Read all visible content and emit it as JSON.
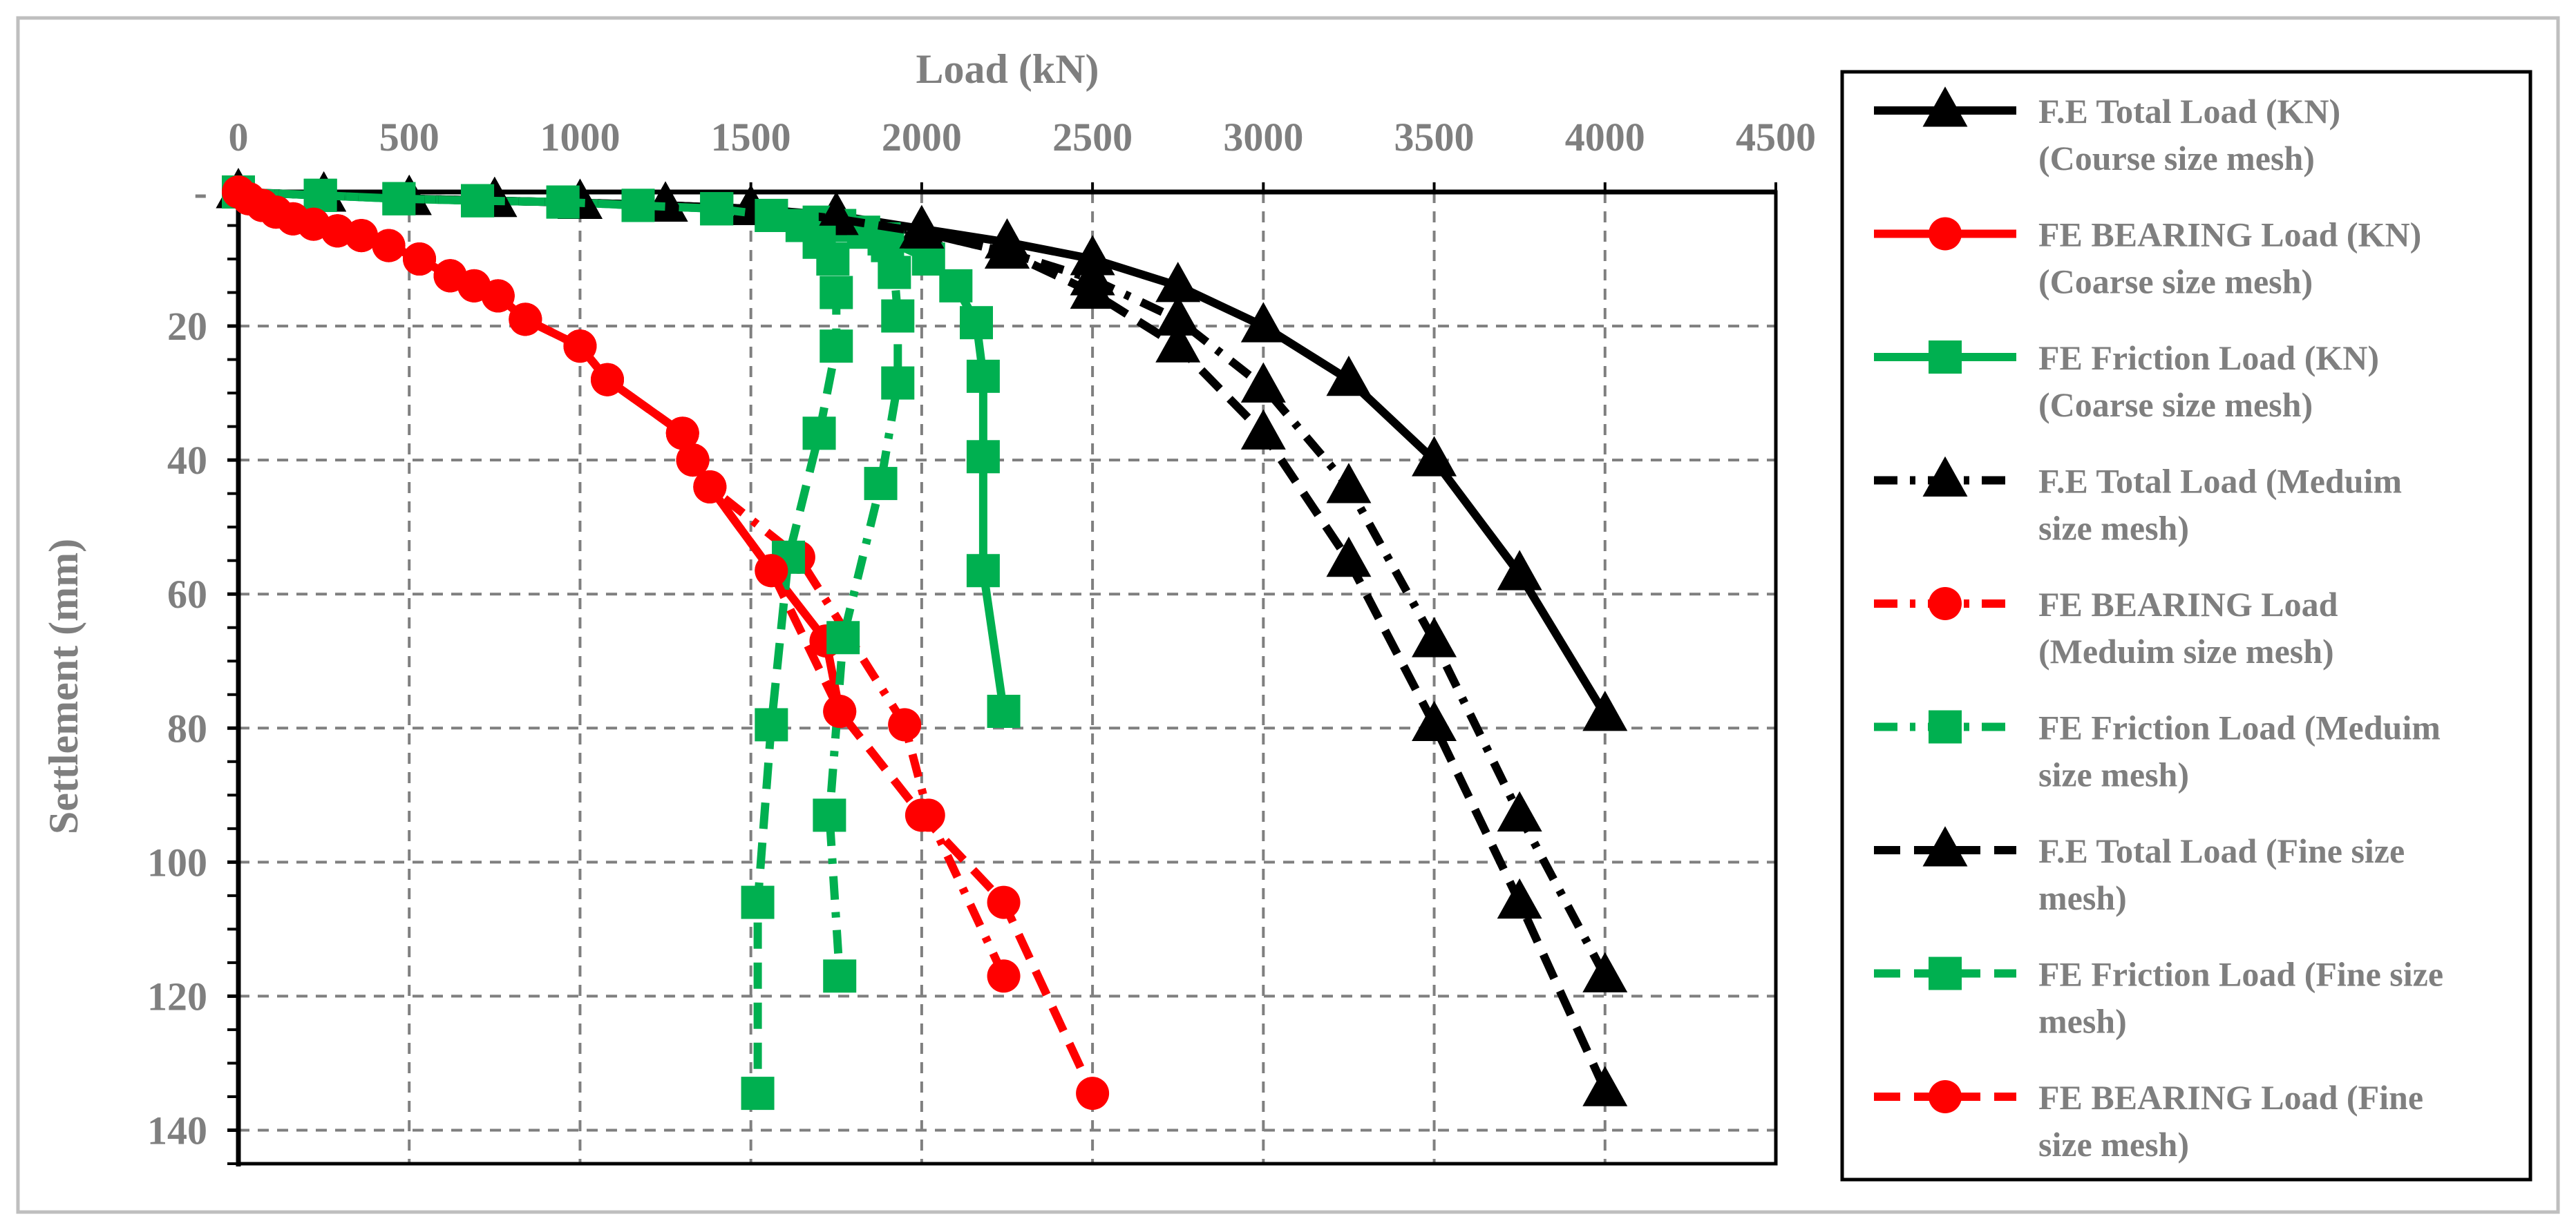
{
  "chart_data": {
    "type": "line",
    "xlabel": "Load (kN)",
    "ylabel": "Settlement (mm)",
    "x_axis_position": "top",
    "y_axis_inverted": true,
    "xlim": [
      0,
      4500
    ],
    "ylim": [
      0,
      145
    ],
    "xticks": [
      0,
      500,
      1000,
      1500,
      2000,
      2500,
      3000,
      3500,
      4000,
      4500
    ],
    "xtick_labels": [
      "0",
      "500",
      "1000",
      "1500",
      "2000",
      "2500",
      "3000",
      "3500",
      "4000",
      "4500"
    ],
    "yticks": [
      0,
      20,
      40,
      60,
      80,
      100,
      120,
      140
    ],
    "ytick_labels": [
      "-",
      "20",
      "40",
      "60",
      "80",
      "100",
      "120",
      "140"
    ],
    "grid": true,
    "legend_position": "right",
    "series": [
      {
        "name_lines": [
          "F.E Total Load (KN)",
          "(Course size mesh)"
        ],
        "color": "#000000",
        "dash": "solid",
        "marker": "triangle",
        "points": [
          [
            0,
            0
          ],
          [
            250,
            0.5
          ],
          [
            500,
            1
          ],
          [
            750,
            1.3
          ],
          [
            1000,
            1.6
          ],
          [
            1250,
            2
          ],
          [
            1500,
            2.5
          ],
          [
            1750,
            3.5
          ],
          [
            2000,
            5.5
          ],
          [
            2250,
            7.5
          ],
          [
            2500,
            10
          ],
          [
            2750,
            14
          ],
          [
            3000,
            20
          ],
          [
            3250,
            28
          ],
          [
            3500,
            40
          ],
          [
            3750,
            57
          ],
          [
            4000,
            78
          ]
        ]
      },
      {
        "name_lines": [
          "FE BEARING Load (KN)",
          "(Coarse  size mesh)"
        ],
        "color": "#ff0000",
        "dash": "solid",
        "marker": "circle",
        "points": [
          [
            0,
            0
          ],
          [
            30,
            1
          ],
          [
            70,
            2
          ],
          [
            110,
            3
          ],
          [
            160,
            4
          ],
          [
            220,
            4.8
          ],
          [
            290,
            5.8
          ],
          [
            360,
            6.5
          ],
          [
            440,
            8
          ],
          [
            530,
            10
          ],
          [
            620,
            12.5
          ],
          [
            690,
            14
          ],
          [
            760,
            15.5
          ],
          [
            840,
            19
          ],
          [
            1000,
            23
          ],
          [
            1080,
            28
          ],
          [
            1300,
            36
          ],
          [
            1330,
            40
          ],
          [
            1380,
            44
          ],
          [
            1560,
            56.5
          ],
          [
            1720,
            67
          ],
          [
            1760,
            77.5
          ]
        ]
      },
      {
        "name_lines": [
          "FE Friction Load (KN)",
          "(Coarse  size mesh)"
        ],
        "color": "#00b050",
        "dash": "solid",
        "marker": "square",
        "points": [
          [
            0,
            0
          ],
          [
            240,
            0.5
          ],
          [
            470,
            1
          ],
          [
            700,
            1.3
          ],
          [
            950,
            1.5
          ],
          [
            1170,
            2
          ],
          [
            1400,
            2.5
          ],
          [
            1560,
            3.5
          ],
          [
            1760,
            5
          ],
          [
            1890,
            7
          ],
          [
            2020,
            10
          ],
          [
            2100,
            14
          ],
          [
            2160,
            19.5
          ],
          [
            2180,
            27.5
          ],
          [
            2180,
            39.5
          ],
          [
            2180,
            56.5
          ],
          [
            2240,
            77.5
          ]
        ]
      },
      {
        "name_lines": [
          "F.E Total Load (Meduim",
          "size mesh)"
        ],
        "color": "#000000",
        "dash": "dashdot",
        "marker": "triangle",
        "points": [
          [
            0,
            0
          ],
          [
            250,
            0.5
          ],
          [
            500,
            1
          ],
          [
            750,
            1.3
          ],
          [
            1000,
            1.6
          ],
          [
            1250,
            2
          ],
          [
            1500,
            2.5
          ],
          [
            1750,
            4
          ],
          [
            2000,
            6
          ],
          [
            2250,
            9
          ],
          [
            2500,
            13
          ],
          [
            2750,
            19
          ],
          [
            3000,
            29
          ],
          [
            3250,
            44
          ],
          [
            3500,
            67
          ],
          [
            3750,
            93
          ],
          [
            4000,
            117
          ]
        ]
      },
      {
        "name_lines": [
          "FE BEARING Load",
          "(Meduim size mesh)"
        ],
        "color": "#ff0000",
        "dash": "dashdot",
        "marker": "circle",
        "points": [
          [
            0,
            0
          ],
          [
            30,
            1
          ],
          [
            70,
            2
          ],
          [
            110,
            3
          ],
          [
            160,
            4
          ],
          [
            220,
            4.8
          ],
          [
            290,
            5.8
          ],
          [
            360,
            6.5
          ],
          [
            440,
            8
          ],
          [
            530,
            10
          ],
          [
            620,
            12.5
          ],
          [
            690,
            14
          ],
          [
            760,
            15.5
          ],
          [
            840,
            19
          ],
          [
            1000,
            23
          ],
          [
            1080,
            28
          ],
          [
            1300,
            36
          ],
          [
            1330,
            40
          ],
          [
            1380,
            44
          ],
          [
            1640,
            54.5
          ],
          [
            1950,
            79.5
          ],
          [
            2020,
            93
          ],
          [
            2240,
            117
          ]
        ]
      },
      {
        "name_lines": [
          "FE Friction Load (Meduim",
          "size mesh)"
        ],
        "color": "#00b050",
        "dash": "dashdot",
        "marker": "square",
        "points": [
          [
            0,
            0
          ],
          [
            240,
            0.5
          ],
          [
            470,
            1
          ],
          [
            700,
            1.3
          ],
          [
            950,
            1.5
          ],
          [
            1170,
            2
          ],
          [
            1400,
            2.5
          ],
          [
            1560,
            3.5
          ],
          [
            1700,
            4.5
          ],
          [
            1830,
            6
          ],
          [
            1900,
            8
          ],
          [
            1920,
            12
          ],
          [
            1930,
            18.5
          ],
          [
            1930,
            28.5
          ],
          [
            1880,
            43.5
          ],
          [
            1770,
            66.5
          ],
          [
            1730,
            93
          ],
          [
            1760,
            117
          ]
        ]
      },
      {
        "name_lines": [
          "F.E Total Load (Fine size",
          "mesh)"
        ],
        "color": "#000000",
        "dash": "dash",
        "marker": "triangle",
        "points": [
          [
            0,
            0
          ],
          [
            250,
            0.5
          ],
          [
            500,
            1
          ],
          [
            750,
            1.3
          ],
          [
            1000,
            1.6
          ],
          [
            1250,
            2
          ],
          [
            1500,
            2.5
          ],
          [
            1750,
            4
          ],
          [
            2000,
            6
          ],
          [
            2250,
            9
          ],
          [
            2500,
            15
          ],
          [
            2750,
            23
          ],
          [
            3000,
            36
          ],
          [
            3250,
            55
          ],
          [
            3500,
            79.5
          ],
          [
            3750,
            106
          ],
          [
            4000,
            134
          ]
        ]
      },
      {
        "name_lines": [
          "FE Friction Load (Fine size",
          "mesh)"
        ],
        "color": "#00b050",
        "dash": "dash",
        "marker": "square",
        "points": [
          [
            0,
            0
          ],
          [
            240,
            0.5
          ],
          [
            470,
            1
          ],
          [
            700,
            1.3
          ],
          [
            950,
            1.5
          ],
          [
            1170,
            2
          ],
          [
            1400,
            2.5
          ],
          [
            1560,
            3.5
          ],
          [
            1650,
            5
          ],
          [
            1700,
            7.5
          ],
          [
            1740,
            10
          ],
          [
            1750,
            15
          ],
          [
            1750,
            23
          ],
          [
            1700,
            36
          ],
          [
            1610,
            54.5
          ],
          [
            1560,
            79.5
          ],
          [
            1520,
            106
          ],
          [
            1520,
            134.5
          ]
        ]
      },
      {
        "name_lines": [
          "FE BEARING Load (Fine",
          "size mesh)"
        ],
        "color": "#ff0000",
        "dash": "dash",
        "marker": "circle",
        "points": [
          [
            0,
            0
          ],
          [
            30,
            1
          ],
          [
            70,
            2
          ],
          [
            110,
            3
          ],
          [
            160,
            4
          ],
          [
            220,
            4.8
          ],
          [
            290,
            5.8
          ],
          [
            360,
            6.5
          ],
          [
            440,
            8
          ],
          [
            530,
            10
          ],
          [
            620,
            12.5
          ],
          [
            690,
            14
          ],
          [
            760,
            15.5
          ],
          [
            840,
            19
          ],
          [
            1000,
            23
          ],
          [
            1080,
            28
          ],
          [
            1300,
            36
          ],
          [
            1330,
            40
          ],
          [
            1380,
            44
          ],
          [
            1560,
            56.5
          ],
          [
            1760,
            77.5
          ],
          [
            2000,
            93
          ],
          [
            2240,
            106
          ],
          [
            2500,
            134.5
          ]
        ]
      }
    ]
  }
}
